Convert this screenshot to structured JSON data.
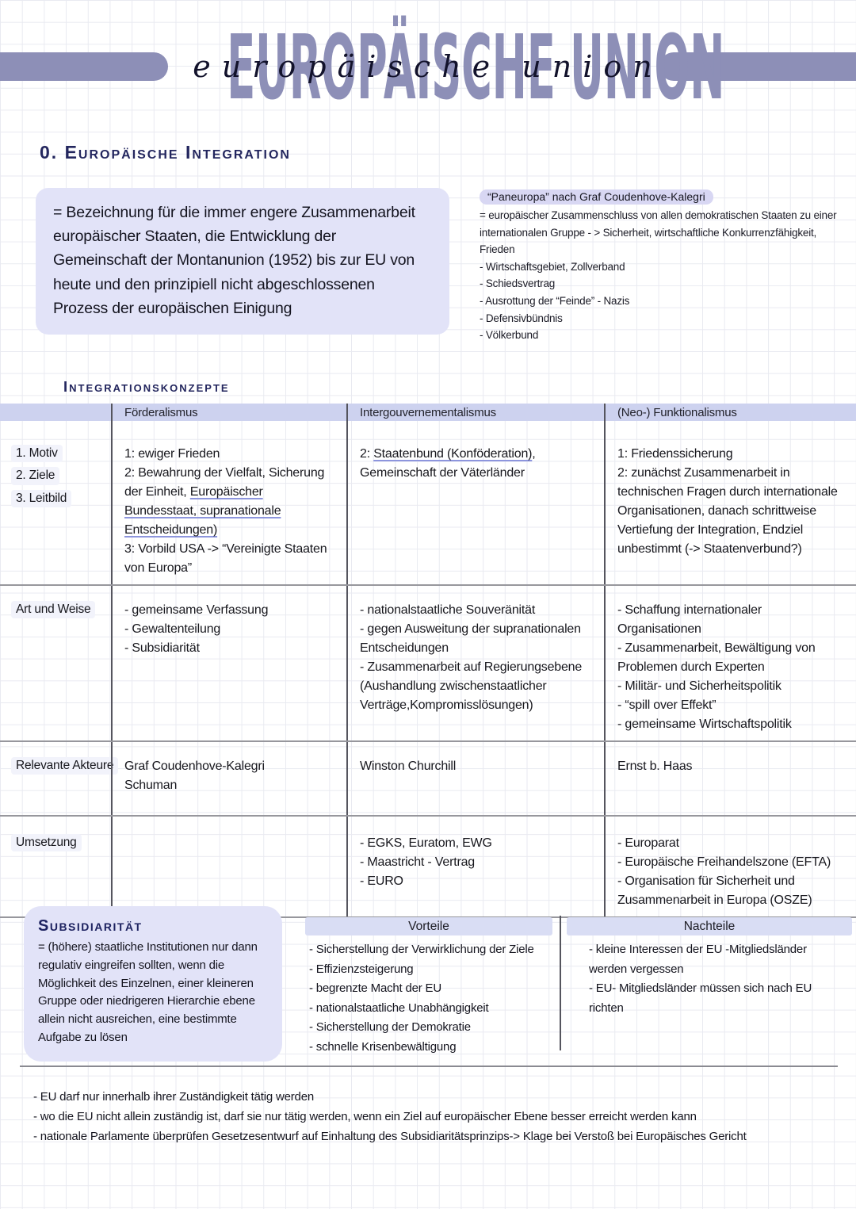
{
  "colors": {
    "accent_purple": "#8d8fb7",
    "lavender_box": "#e2e3f8",
    "table_band": "#cdd2ef",
    "highlight_pill": "#d8d7f3",
    "heading_navy": "#23265e",
    "underline_blue": "#8d95dd"
  },
  "header": {
    "bubble_title": "EUROPÄISCHE UNION",
    "script_title": "europäische union",
    "section_heading": "0. Europäische Integration"
  },
  "definition_box": {
    "text": "= Bezeichnung für die immer engere Zusammenarbeit europäischer Staaten, die Entwicklung der Gemeinschaft der Montanunion (1952) bis zur EU von heute und den prinzipiell nicht abgeschlossenen Prozess der europäischen Einigung"
  },
  "side_note": {
    "heading": "“Paneuropa” nach Graf Coudenhove-Kalegri",
    "lines": [
      "= europäischer Zusammenschluss von allen demokratischen Staaten zu einer internationalen Gruppe - > Sicherheit, wirtschaftliche Konkurrenzfähigkeit, Frieden",
      "- Wirtschaftsgebiet, Zollverband",
      "- Schiedsvertrag",
      "- Ausrottung der “Feinde” - Nazis",
      "- Defensivbündnis",
      "- Völkerbund"
    ]
  },
  "concepts": {
    "heading": "Integrationskonzepte",
    "columns": [
      "Förderalismus",
      "Intergouvernementalismus",
      "(Neo-) Funktionalismus"
    ],
    "rows": [
      {
        "labels": [
          "1. Motiv",
          "2. Ziele",
          "3. Leitbild"
        ],
        "cells": [
          [
            [
              {
                "t": "1: ewiger Frieden"
              }
            ],
            [
              {
                "t": "2: Bewahrung der Vielfalt, Sicherung der Einheit, "
              },
              {
                "t": "Europäischer Bundesstaat, supranationale Entscheidungen)",
                "u": true
              }
            ],
            [
              {
                "t": "3: Vorbild USA -> “Vereinigte Staaten von Europa”"
              }
            ]
          ],
          [
            [
              {
                "t": "2: "
              },
              {
                "t": "Staatenbund (Konföderation)",
                "u": true
              },
              {
                "t": ", Gemeinschaft der Väterländer"
              }
            ]
          ],
          [
            [
              {
                "t": "1: Friedenssicherung"
              }
            ],
            [
              {
                "t": "2: zunächst Zusammenarbeit in technischen Fragen durch internationale Organisationen, danach schrittweise Vertiefung der Integration, Endziel unbestimmt (-> Staatenverbund?)"
              }
            ]
          ]
        ]
      },
      {
        "labels": [
          "Art und Weise"
        ],
        "cells": [
          [
            [
              {
                "t": "- gemeinsame Verfassung"
              }
            ],
            [
              {
                "t": "- Gewaltenteilung"
              }
            ],
            [
              {
                "t": "- Subsidiarität"
              }
            ]
          ],
          [
            [
              {
                "t": "- nationalstaatliche Souveränität"
              }
            ],
            [
              {
                "t": "- gegen Ausweitung der supranationalen Entscheidungen"
              }
            ],
            [
              {
                "t": "- Zusammenarbeit auf Regierungsebene (Aushandlung zwischenstaatlicher Verträge,Kompromisslösungen)"
              }
            ]
          ],
          [
            [
              {
                "t": "- Schaffung internationaler Organisationen"
              }
            ],
            [
              {
                "t": "- Zusammenarbeit, Bewältigung von Problemen durch Experten"
              }
            ],
            [
              {
                "t": "- Militär- und Sicherheitspolitik"
              }
            ],
            [
              {
                "t": "- “spill over Effekt”"
              }
            ],
            [
              {
                "t": "- gemeinsame Wirtschaftspolitik"
              }
            ]
          ]
        ]
      },
      {
        "labels": [
          "Relevante Akteure"
        ],
        "cells": [
          [
            [
              {
                "t": "Graf Coudenhove-Kalegri"
              }
            ],
            [
              {
                "t": "Schuman"
              }
            ]
          ],
          [
            [
              {
                "t": "Winston Churchill"
              }
            ]
          ],
          [
            [
              {
                "t": "Ernst b. Haas"
              }
            ]
          ]
        ]
      },
      {
        "labels": [
          "Umsetzung"
        ],
        "cells": [
          [],
          [
            [
              {
                "t": "- EGKS, Euratom, EWG"
              }
            ],
            [
              {
                "t": "- Maastricht - Vertrag"
              }
            ],
            [
              {
                "t": "- EURO"
              }
            ]
          ],
          [
            [
              {
                "t": "- Europarat"
              }
            ],
            [
              {
                "t": "- Europäische Freihandelszone (EFTA)"
              }
            ],
            [
              {
                "t": "- Organisation für Sicherheit und Zusammenarbeit in Europa (OSZE)"
              }
            ]
          ]
        ]
      }
    ]
  },
  "subsidiarity": {
    "heading": "Subsidiarität",
    "text": "= (höhere) staatliche Institutionen nur dann regulativ eingreifen sollten, wenn die Möglichkeit des Einzelnen, einer kleineren Gruppe oder niedrigeren Hierarchie ebene allein nicht ausreichen, eine bestimmte Aufgabe zu lösen"
  },
  "pros_cons": {
    "pros_heading": "Vorteile",
    "pros": [
      "- Sicherstellung der Verwirklichung der Ziele",
      "- Effizienzsteigerung",
      "- begrenzte Macht der EU",
      "- nationalstaatliche Unabhängigkeit",
      "- Sicherstellung der Demokratie",
      "- schnelle Krisenbewältigung"
    ],
    "cons_heading": "Nachteile",
    "cons": [
      "- kleine Interessen der EU -Mitgliedsländer werden vergessen",
      "- EU- Mitgliedsländer müssen sich nach EU richten"
    ]
  },
  "footnotes": [
    "- EU darf nur innerhalb ihrer Zuständigkeit tätig werden",
    "- wo die EU nicht allein zuständig ist, darf sie nur tätig werden, wenn ein Ziel auf europäischer Ebene besser erreicht werden kann",
    "- nationale Parlamente überprüfen Gesetzesentwurf auf Einhaltung des Subsidiaritätsprinzips-> Klage bei Verstoß bei Europäisches Gericht"
  ]
}
